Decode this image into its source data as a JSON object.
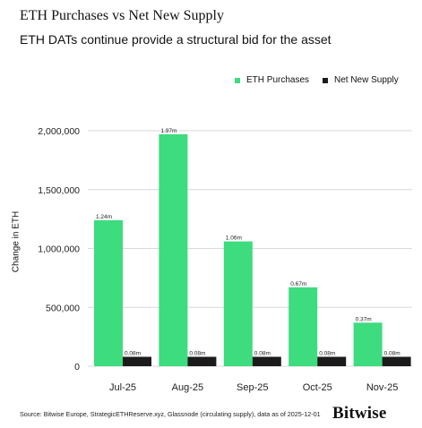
{
  "header": {
    "title": "ETH Purchases vs Net New Supply",
    "subtitle": "ETH DATs continue provide a structural bid for the asset"
  },
  "footer": {
    "source": "Source: Bitwise Europe, StrategicETHReserve.xyz, Glassnode (circulating supply), data as of 2025-12-01",
    "brand": "Bitwise"
  },
  "colors": {
    "purchases": "#3ddc7e",
    "supply": "#1b1b1b",
    "grid": "#d9d9d9"
  },
  "chart_data": {
    "type": "bar",
    "title": "ETH Purchases vs Net New Supply",
    "subtitle": "ETH DATs continue provide a structural bid for the asset",
    "ylabel": "Change in ETH",
    "xlabel": "",
    "categories": [
      "Jul-25",
      "Aug-25",
      "Sep-25",
      "Oct-25",
      "Nov-25"
    ],
    "ylim": [
      0,
      2000000
    ],
    "yticks": [
      0,
      500000,
      1000000,
      1500000,
      2000000
    ],
    "ytick_labels": [
      "0",
      "500,000",
      "1,000,000",
      "1,500,000",
      "2,000,000"
    ],
    "grid": true,
    "legend_position": "top-right",
    "series": [
      {
        "name": "ETH Purchases",
        "values": [
          1240000,
          1970000,
          1060000,
          670000,
          370000
        ],
        "labels": [
          "1.24m",
          "1.97m",
          "1.06m",
          "0.67m",
          "0.37m"
        ]
      },
      {
        "name": "Net New Supply",
        "values": [
          80000,
          80000,
          80000,
          80000,
          80000
        ],
        "labels": [
          "0.08m",
          "0.08m",
          "0.08m",
          "0.08m",
          "0.08m"
        ]
      }
    ]
  }
}
